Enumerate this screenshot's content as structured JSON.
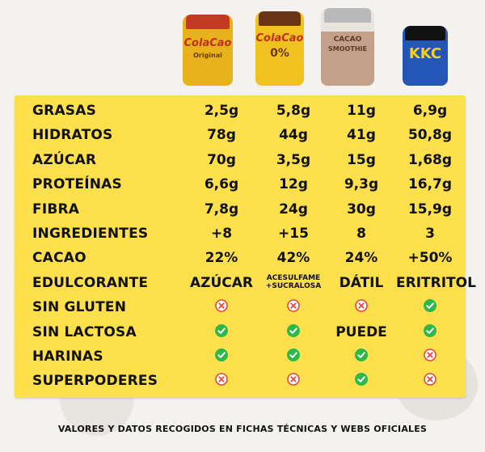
{
  "products": [
    {
      "name": "ColaCao",
      "sub": "Original",
      "color": "#d9a31a"
    },
    {
      "name": "ColaCao",
      "sub": "0%",
      "color": "#8b4a1e"
    },
    {
      "name": "CACAO",
      "sub": "SMOOTHIE",
      "color": "#c9a58a"
    },
    {
      "name": "KKC",
      "sub": "",
      "color": "#2456b8"
    }
  ],
  "rows": [
    {
      "label": "GRASAS",
      "values": [
        {
          "text": "2,5g"
        },
        {
          "text": "5,8g"
        },
        {
          "text": "11g"
        },
        {
          "text": "6,9g"
        }
      ]
    },
    {
      "label": "HIDRATOS",
      "values": [
        {
          "text": "78g"
        },
        {
          "text": "44g"
        },
        {
          "text": "41g"
        },
        {
          "text": "50,8g"
        }
      ]
    },
    {
      "label": "AZÚCAR",
      "values": [
        {
          "text": "70g"
        },
        {
          "text": "3,5g"
        },
        {
          "text": "15g"
        },
        {
          "text": "1,68g"
        }
      ]
    },
    {
      "label": "PROTEÍNAS",
      "values": [
        {
          "text": "6,6g"
        },
        {
          "text": "12g"
        },
        {
          "text": "9,3g"
        },
        {
          "text": "16,7g"
        }
      ]
    },
    {
      "label": "FIBRA",
      "values": [
        {
          "text": "7,8g"
        },
        {
          "text": "24g"
        },
        {
          "text": "30g"
        },
        {
          "text": "15,9g"
        }
      ]
    },
    {
      "label": "INGREDIENTES",
      "values": [
        {
          "text": "+8"
        },
        {
          "text": "+15"
        },
        {
          "text": "8"
        },
        {
          "text": "3"
        }
      ]
    },
    {
      "label": "CACAO",
      "values": [
        {
          "text": "22%"
        },
        {
          "text": "42%"
        },
        {
          "text": "24%"
        },
        {
          "text": "+50%"
        }
      ]
    },
    {
      "label": "EDULCORANTE",
      "values": [
        {
          "text": "AZÚCAR"
        },
        {
          "text": "ACESULFAME +SUCRALOSA",
          "small": true
        },
        {
          "text": "DÁTIL"
        },
        {
          "text": "ERITRITOL"
        }
      ]
    },
    {
      "label": "SIN GLUTEN",
      "values": [
        {
          "icon": "cross"
        },
        {
          "icon": "cross"
        },
        {
          "icon": "cross"
        },
        {
          "icon": "check"
        }
      ]
    },
    {
      "label": "SIN LACTOSA",
      "values": [
        {
          "icon": "check"
        },
        {
          "icon": "check"
        },
        {
          "text": "PUEDE"
        },
        {
          "icon": "check"
        }
      ]
    },
    {
      "label": "HARINAS",
      "values": [
        {
          "icon": "check"
        },
        {
          "icon": "check"
        },
        {
          "icon": "check"
        },
        {
          "icon": "cross"
        }
      ]
    },
    {
      "label": "SUPERPODERES",
      "values": [
        {
          "icon": "cross"
        },
        {
          "icon": "cross"
        },
        {
          "icon": "check"
        },
        {
          "icon": "cross"
        }
      ]
    }
  ],
  "footer": "VALORES Y DATOS RECOGIDOS EN FICHAS TÉCNICAS Y WEBS OFICIALES",
  "colors": {
    "card": "#fde04b",
    "check": "#2eb84b",
    "cross": "#e0483e"
  }
}
